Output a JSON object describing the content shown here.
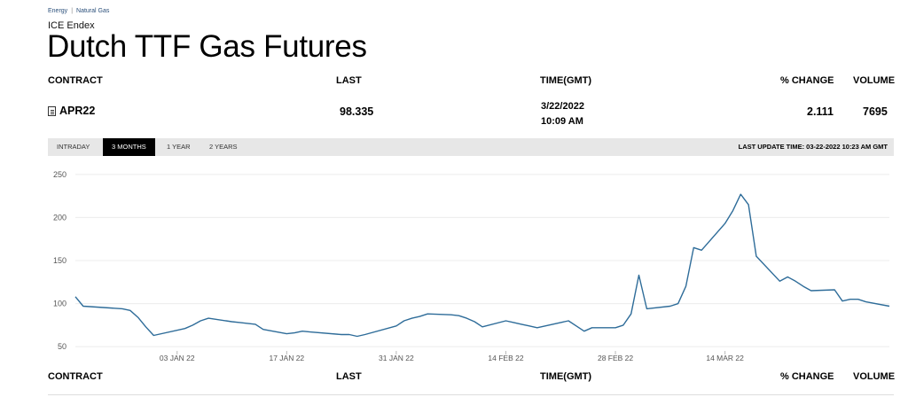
{
  "breadcrumb": {
    "category": "Energy",
    "separator": "|",
    "subcategory": "Natural Gas"
  },
  "exchange": "ICE Endex",
  "title": "Dutch TTF Gas Futures",
  "table": {
    "headers": {
      "contract": "CONTRACT",
      "last": "LAST",
      "time": "TIME(GMT)",
      "change": "% CHANGE",
      "volume": "VOLUME"
    },
    "row": {
      "contract": "APR22",
      "last": "98.335",
      "date": "3/22/2022",
      "time": "10:09 AM",
      "change": "2.111",
      "volume": "7695"
    }
  },
  "tabs": [
    {
      "label": "INTRADAY",
      "active": false
    },
    {
      "label": "3 MONTHS",
      "active": true
    },
    {
      "label": "1 YEAR",
      "active": false
    },
    {
      "label": "2 YEARS",
      "active": false
    }
  ],
  "last_update": "LAST UPDATE TIME: 03-22-2022 10:23 AM GMT",
  "bottom_headers": {
    "contract": "CONTRACT",
    "last": "LAST",
    "time": "TIME(GMT)",
    "change": "% CHANGE",
    "volume": "VOLUME"
  },
  "chart_data": {
    "type": "line",
    "series": [
      {
        "color": "#2e6c99",
        "points": [
          [
            "2021-12-21",
            108
          ],
          [
            "2021-12-22",
            97
          ],
          [
            "2021-12-27",
            94
          ],
          [
            "2021-12-28",
            92
          ],
          [
            "2021-12-29",
            84
          ],
          [
            "2021-12-30",
            73
          ],
          [
            "2021-12-31",
            63
          ],
          [
            "2022-01-04",
            71
          ],
          [
            "2022-01-05",
            75
          ],
          [
            "2022-01-06",
            80
          ],
          [
            "2022-01-07",
            83
          ],
          [
            "2022-01-10",
            79
          ],
          [
            "2022-01-11",
            78
          ],
          [
            "2022-01-13",
            76
          ],
          [
            "2022-01-14",
            70
          ],
          [
            "2022-01-17",
            65
          ],
          [
            "2022-01-18",
            66
          ],
          [
            "2022-01-19",
            68
          ],
          [
            "2022-01-20",
            67
          ],
          [
            "2022-01-24",
            64
          ],
          [
            "2022-01-25",
            64
          ],
          [
            "2022-01-26",
            62
          ],
          [
            "2022-01-27",
            64
          ],
          [
            "2022-01-31",
            74
          ],
          [
            "2022-02-01",
            80
          ],
          [
            "2022-02-02",
            83
          ],
          [
            "2022-02-03",
            85
          ],
          [
            "2022-02-04",
            88
          ],
          [
            "2022-02-07",
            87
          ],
          [
            "2022-02-08",
            86
          ],
          [
            "2022-02-09",
            83
          ],
          [
            "2022-02-10",
            79
          ],
          [
            "2022-02-11",
            73
          ],
          [
            "2022-02-14",
            80
          ],
          [
            "2022-02-15",
            78
          ],
          [
            "2022-02-16",
            76
          ],
          [
            "2022-02-17",
            74
          ],
          [
            "2022-02-18",
            72
          ],
          [
            "2022-02-21",
            78
          ],
          [
            "2022-02-22",
            80
          ],
          [
            "2022-02-23",
            74
          ],
          [
            "2022-02-24",
            68
          ],
          [
            "2022-02-25",
            72
          ],
          [
            "2022-02-28",
            72
          ],
          [
            "2022-03-01",
            75
          ],
          [
            "2022-03-02",
            88
          ],
          [
            "2022-03-03",
            133
          ],
          [
            "2022-03-04",
            94
          ],
          [
            "2022-03-07",
            97
          ],
          [
            "2022-03-08",
            100
          ],
          [
            "2022-03-09",
            120
          ],
          [
            "2022-03-10",
            165
          ],
          [
            "2022-03-11",
            162
          ],
          [
            "2022-03-14",
            193
          ],
          [
            "2022-03-15",
            208
          ],
          [
            "2022-03-16",
            227
          ],
          [
            "2022-03-17",
            215
          ],
          [
            "2022-03-18",
            155
          ],
          [
            "2022-03-21",
            126
          ],
          [
            "2022-03-22",
            131
          ],
          [
            "2022-03-23",
            126
          ],
          [
            "2022-03-24",
            120
          ],
          [
            "2022-03-25",
            115
          ],
          [
            "2022-03-28",
            116
          ],
          [
            "2022-03-29",
            103
          ],
          [
            "2022-03-30",
            105
          ],
          [
            "2022-03-31",
            105
          ],
          [
            "2022-04-01",
            102
          ],
          [
            "2022-04-04",
            97
          ]
        ]
      }
    ],
    "x_range": [
      "2021-12-21",
      "2022-04-04"
    ],
    "y_range": [
      45,
      255
    ],
    "y_ticks": [
      50,
      100,
      150,
      200,
      250
    ],
    "x_ticks": [
      {
        "date": "2022-01-03",
        "label": "03 JAN 22"
      },
      {
        "date": "2022-01-17",
        "label": "17 JAN 22"
      },
      {
        "date": "2022-01-31",
        "label": "31 JAN 22"
      },
      {
        "date": "2022-02-14",
        "label": "14 FEB 22"
      },
      {
        "date": "2022-02-28",
        "label": "28 FEB 22"
      },
      {
        "date": "2022-03-14",
        "label": "14 MAR 22"
      }
    ],
    "grid": true
  }
}
